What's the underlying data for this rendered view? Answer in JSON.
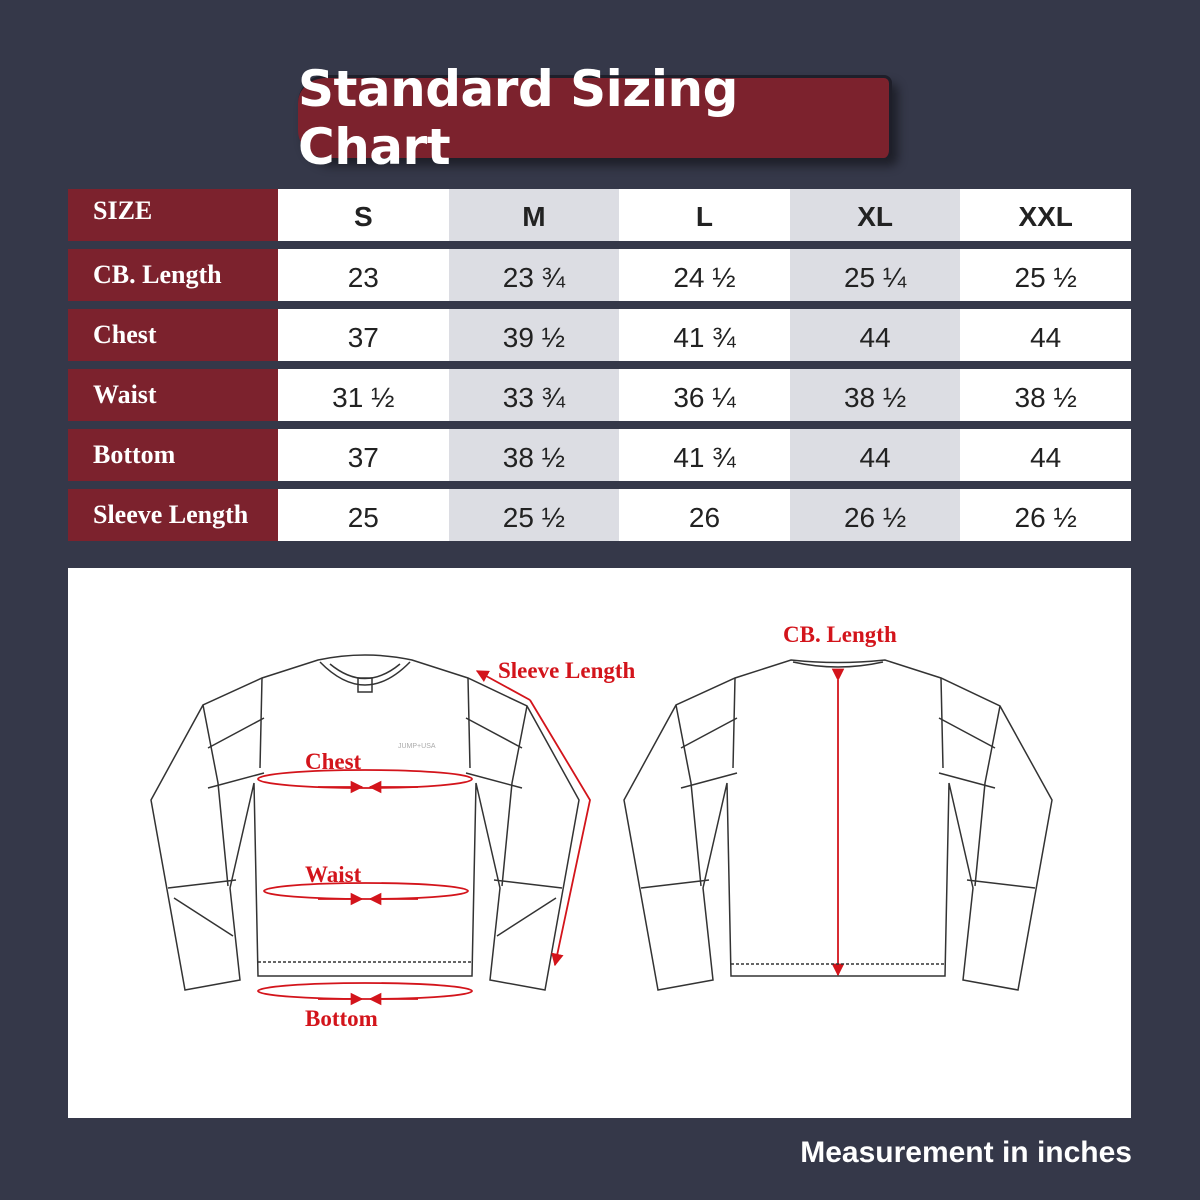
{
  "title": "Standard Sizing Chart",
  "table": {
    "header_label": "SIZE",
    "sizes": [
      "S",
      "M",
      "L",
      "XL",
      "XXL"
    ],
    "rows": [
      {
        "label": "CB. Length",
        "values": [
          "23",
          "23 ¾",
          "24 ½",
          "25 ¼",
          "25 ½"
        ]
      },
      {
        "label": "Chest",
        "values": [
          "37",
          "39 ½",
          "41 ¾",
          "44",
          "44"
        ]
      },
      {
        "label": " Waist",
        "values": [
          "31 ½",
          "33 ¾",
          "36 ¼",
          "38 ½",
          "38 ½"
        ]
      },
      {
        "label": "Bottom",
        "values": [
          "37",
          "38 ½",
          "41 ¾",
          "44",
          "44"
        ]
      },
      {
        "label": "Sleeve Length",
        "values": [
          "25",
          "25 ½",
          "26",
          "26 ½",
          "26 ½"
        ]
      }
    ]
  },
  "diagram": {
    "chest": "Chest",
    "waist": "Waist",
    "bottom": "Bottom",
    "sleeve_length": "Sleeve Length",
    "cb_length": "CB. Length",
    "brand_print": "JUMP+USA"
  },
  "footer": "Measurement in inches",
  "colors": {
    "background": "#353849",
    "accent": "#7c222d",
    "alt_column": "#dcdde3",
    "measure_red": "#d3141b"
  }
}
